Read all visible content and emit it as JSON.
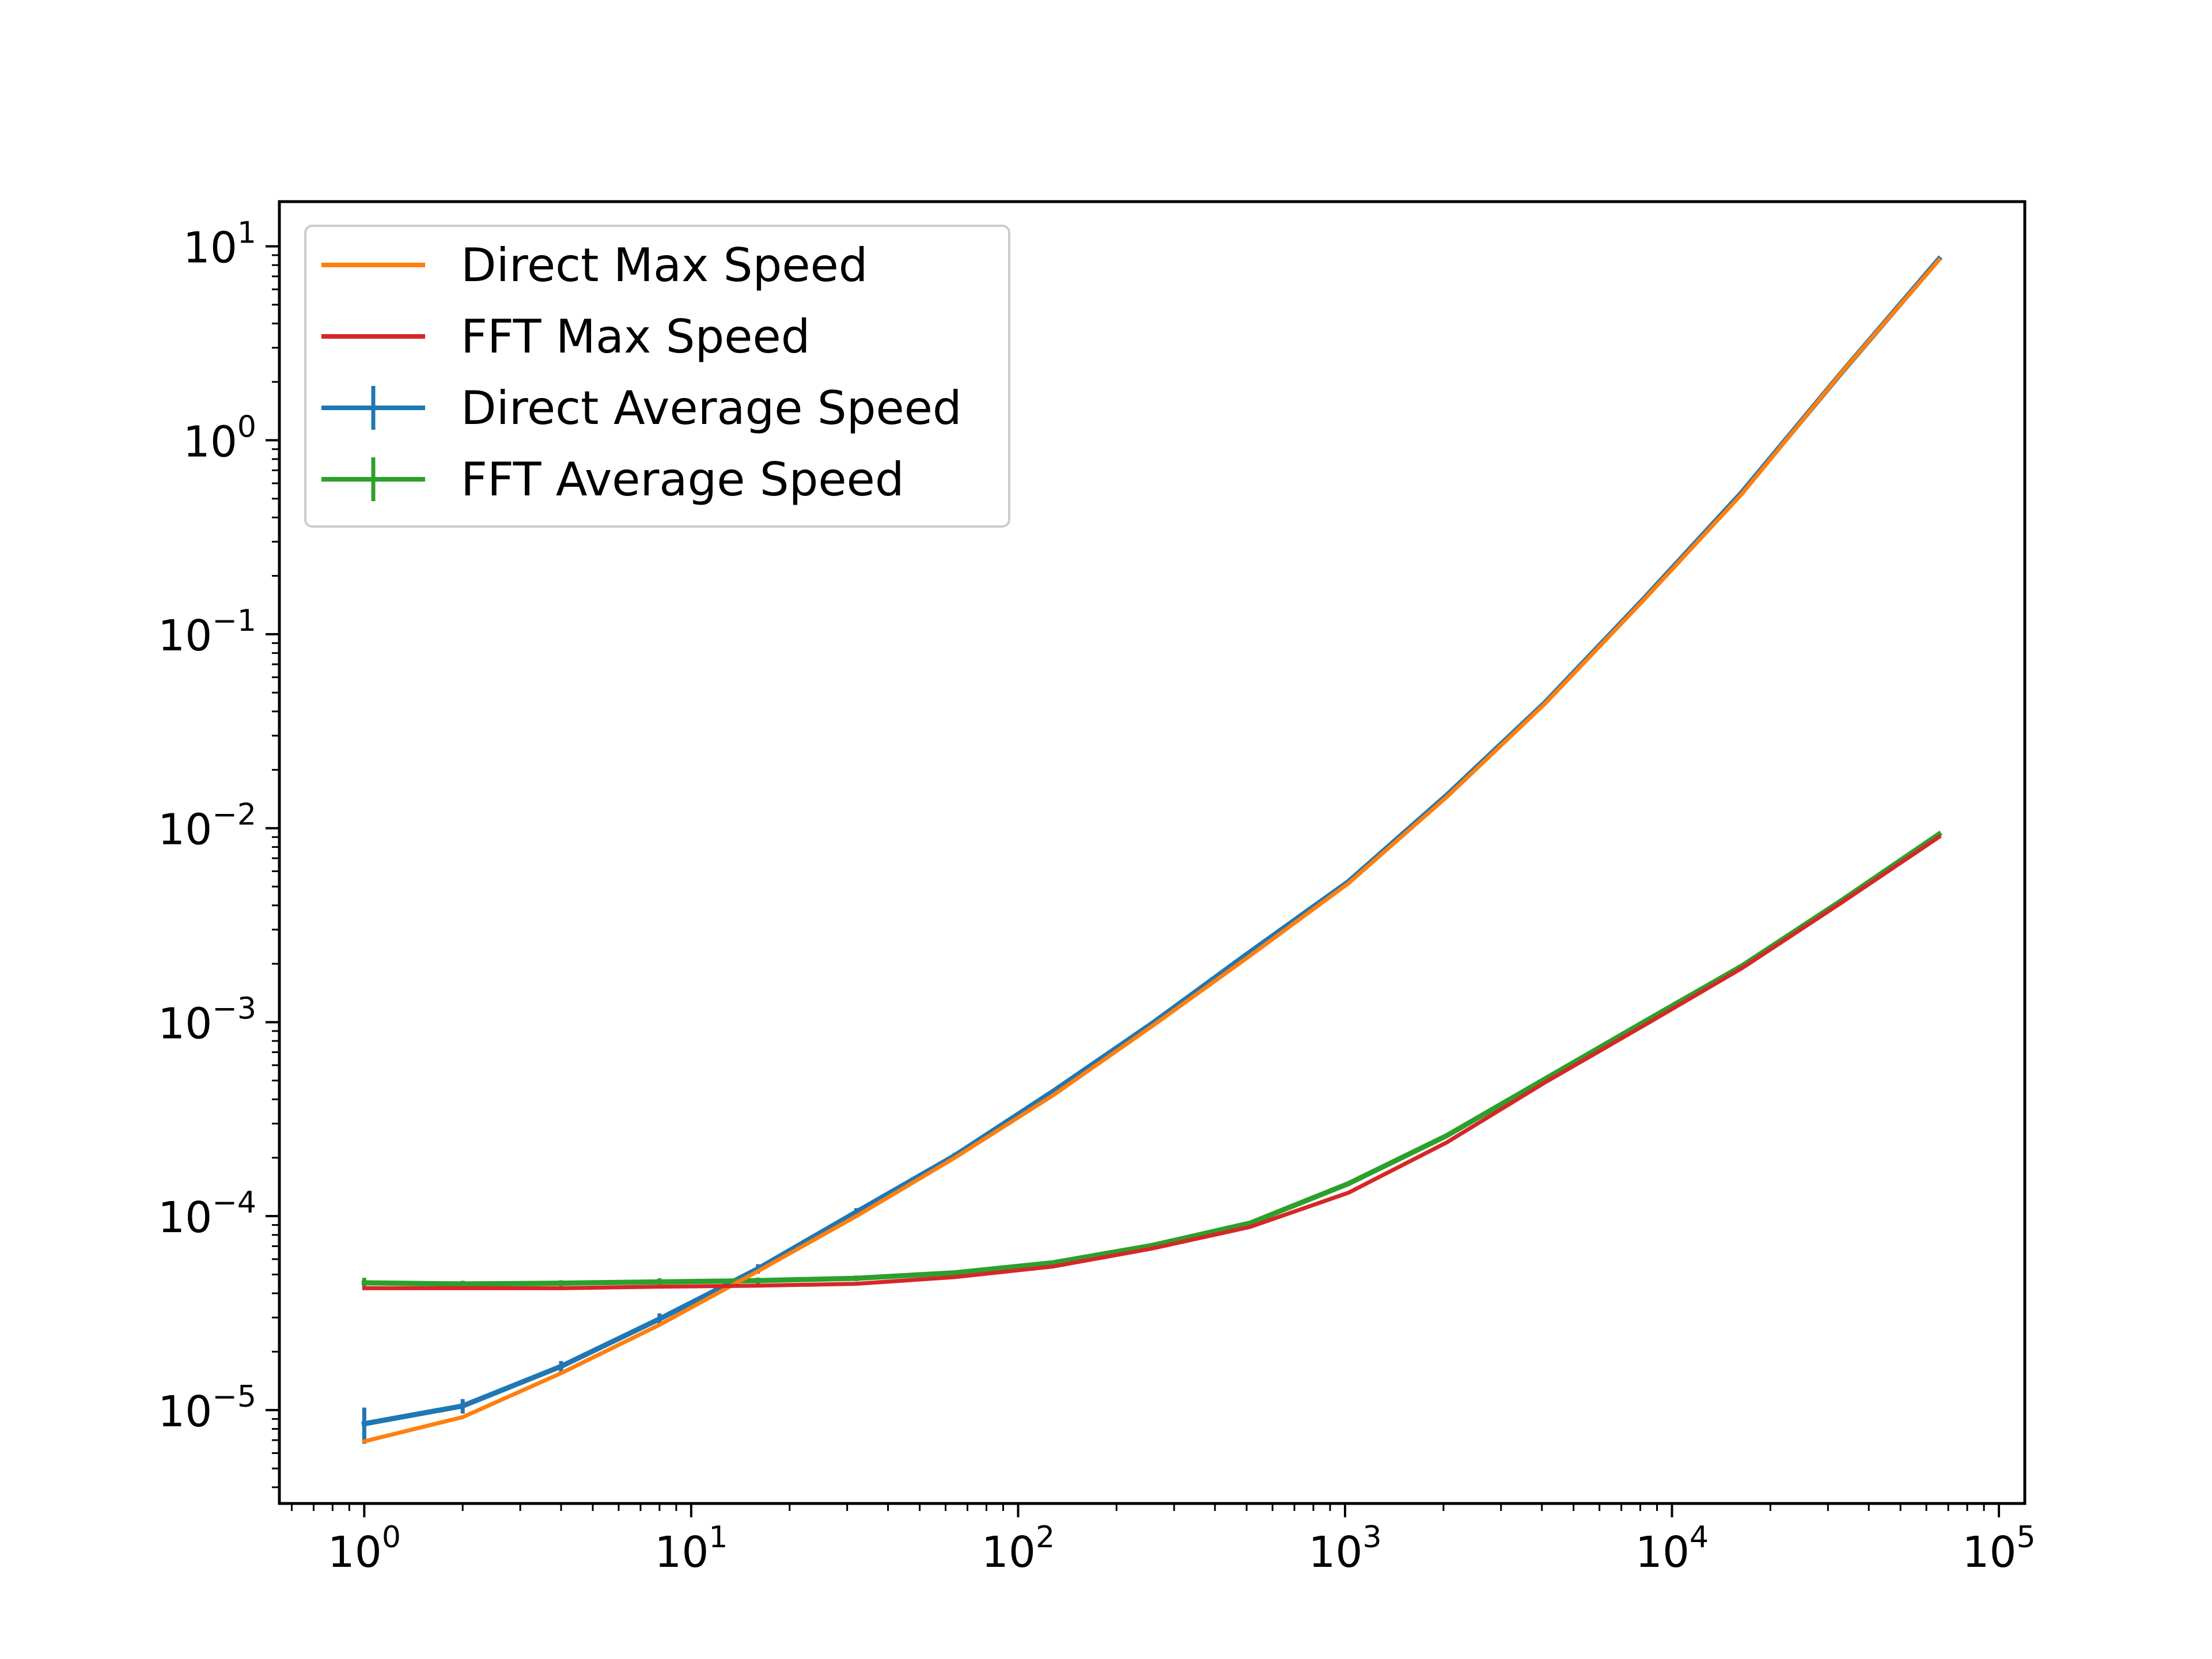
{
  "chart_data": {
    "type": "line",
    "title": "",
    "xlabel": "",
    "ylabel": "",
    "xscale": "log",
    "yscale": "log",
    "xlim": [
      0.55,
      120000
    ],
    "ylim": [
      3.3e-06,
      17
    ],
    "grid": false,
    "legend_position": "top-left",
    "x": [
      1,
      2,
      4,
      8,
      16,
      32,
      64,
      128,
      256,
      512,
      1024,
      2048,
      4096,
      8192,
      16384,
      32768,
      65536
    ],
    "series": [
      {
        "name": "Direct Max Speed",
        "style": "line",
        "color": "#ff7f0e",
        "values": [
          6.9e-06,
          9.2e-06,
          1.55e-05,
          2.75e-05,
          5.2e-05,
          0.0001,
          0.0002,
          0.00042,
          0.00095,
          0.0022,
          0.0052,
          0.0145,
          0.044,
          0.15,
          0.53,
          2.2,
          8.5
        ]
      },
      {
        "name": "FFT Max Speed",
        "style": "line",
        "color": "#d62728",
        "values": [
          4.25e-05,
          4.25e-05,
          4.25e-05,
          4.33e-05,
          4.38e-05,
          4.48e-05,
          4.85e-05,
          5.5e-05,
          6.8e-05,
          8.8e-05,
          0.000132,
          0.00024,
          0.00049,
          0.00096,
          0.0019,
          0.0041,
          0.009
        ]
      },
      {
        "name": "Direct Average Speed",
        "style": "errorbar",
        "color": "#1f77b4",
        "values": [
          8.5e-06,
          1.05e-05,
          1.68e-05,
          2.95e-05,
          5.35e-05,
          0.000105,
          0.000205,
          0.00044,
          0.00098,
          0.0023,
          0.0053,
          0.0148,
          0.0445,
          0.152,
          0.54,
          2.2,
          8.6
        ],
        "err_low": [
          6.7e-06,
          9.6e-06,
          1.57e-05,
          2.75e-05,
          5.05e-05,
          0.0001,
          0.000198,
          0.00043,
          0.00096,
          0.00226,
          0.00525,
          0.0147,
          0.0442,
          0.151,
          0.537,
          2.19,
          8.55
        ],
        "err_high": [
          1.03e-05,
          1.14e-05,
          1.79e-05,
          3.15e-05,
          5.65e-05,
          0.00011,
          0.000212,
          0.00045,
          0.001,
          0.00234,
          0.00535,
          0.0149,
          0.0448,
          0.153,
          0.543,
          2.21,
          8.65
        ]
      },
      {
        "name": "FFT Average Speed",
        "style": "errorbar",
        "color": "#2ca02c",
        "values": [
          4.53e-05,
          4.47e-05,
          4.51e-05,
          4.58e-05,
          4.65e-05,
          4.78e-05,
          5.1e-05,
          5.75e-05,
          7.05e-05,
          9.2e-05,
          0.000147,
          0.00026,
          0.00051,
          0.001,
          0.00195,
          0.0042,
          0.0093
        ],
        "err_low": [
          4.25e-05,
          4.3e-05,
          4.35e-05,
          4.38e-05,
          4.48e-05,
          4.62e-05,
          4.98e-05,
          5.62e-05,
          6.9e-05,
          9.1e-05,
          0.000145,
          0.000258,
          0.000507,
          0.000997,
          0.00194,
          0.00419,
          0.00928
        ],
        "err_high": [
          4.81e-05,
          4.64e-05,
          4.67e-05,
          4.78e-05,
          4.82e-05,
          4.94e-05,
          5.22e-05,
          5.88e-05,
          7.2e-05,
          9.3e-05,
          0.000149,
          0.000262,
          0.000513,
          0.001003,
          0.00196,
          0.00421,
          0.00932
        ]
      }
    ],
    "xticks": [
      {
        "base": "10",
        "exp": "0",
        "value": 1
      },
      {
        "base": "10",
        "exp": "1",
        "value": 10
      },
      {
        "base": "10",
        "exp": "2",
        "value": 100
      },
      {
        "base": "10",
        "exp": "3",
        "value": 1000
      },
      {
        "base": "10",
        "exp": "4",
        "value": 10000
      },
      {
        "base": "10",
        "exp": "5",
        "value": 100000
      }
    ],
    "yticks": [
      {
        "base": "10",
        "exp": "−5",
        "value": 1e-05
      },
      {
        "base": "10",
        "exp": "−4",
        "value": 0.0001
      },
      {
        "base": "10",
        "exp": "−3",
        "value": 0.001
      },
      {
        "base": "10",
        "exp": "−2",
        "value": 0.01
      },
      {
        "base": "10",
        "exp": "−1",
        "value": 0.1
      },
      {
        "base": "10",
        "exp": "0",
        "value": 1
      },
      {
        "base": "10",
        "exp": "1",
        "value": 10
      }
    ]
  }
}
